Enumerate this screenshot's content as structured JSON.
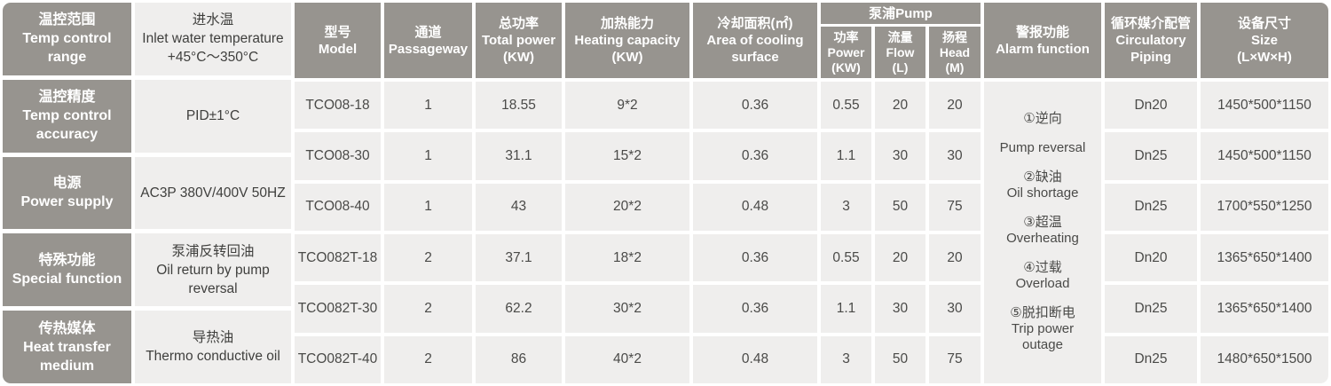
{
  "colors": {
    "header_bg": "#97948F",
    "cell_bg": "#EFEEED",
    "header_text": "#FFFFFF",
    "cell_text": "#4A4A48",
    "background": "#FFFFFF"
  },
  "left_panel": {
    "rows": [
      {
        "label": "温控范围\nTemp control\nrange",
        "value": "进水温\nInlet water temperature\n+45°C～350°C"
      },
      {
        "label": "温控精度\nTemp control\naccuracy",
        "value": "PID±1°C"
      },
      {
        "label": "电源\nPower supply",
        "value": "AC3P 380V/400V 50HZ"
      },
      {
        "label": "特殊功能\nSpecial function",
        "value": "泵浦反转回油\nOil return by pump\nreversal"
      },
      {
        "label": "传热媒体\nHeat transfer\nmedium",
        "value": "导热油\nThermo conductive oil"
      }
    ]
  },
  "table": {
    "headers": {
      "model": "型号\nModel",
      "passageway": "通道\nPassageway",
      "total_power": "总功率\nTotal power\n(KW)",
      "heating_capacity": "加热能力\nHeating capacity\n(KW)",
      "cooling_area": "冷却面积(㎡)\nArea of cooling\nsurface",
      "pump_group": "泵浦Pump",
      "pump_power": "功率\nPower\n(KW)",
      "pump_flow": "流量\nFlow\n(L)",
      "pump_head": "扬程\nHead\n(M)",
      "alarm": "警报功能\nAlarm function",
      "piping": "循环媒介配管\nCirculatory\nPiping",
      "size": "设备尺寸\nSize\n(L×W×H)"
    },
    "alarm_items": [
      "①逆向",
      "Pump reversal",
      "②缺油\nOil shortage",
      "③超温\nOverheating",
      "④过载\nOverload",
      "⑤脱扣断电\nTrip power\noutage"
    ],
    "rows": [
      {
        "cells": [
          "TCO08-18",
          "1",
          "18.55",
          "9*2",
          "0.36",
          "0.55",
          "20",
          "20",
          "Dn20",
          "1450*500*1150"
        ]
      },
      {
        "cells": [
          "TCO08-30",
          "1",
          "31.1",
          "15*2",
          "0.36",
          "1.1",
          "30",
          "30",
          "Dn25",
          "1450*500*1150"
        ]
      },
      {
        "cells": [
          "TCO08-40",
          "1",
          "43",
          "20*2",
          "0.48",
          "3",
          "50",
          "75",
          "Dn25",
          "1700*550*1250"
        ]
      },
      {
        "cells": [
          "TCO082T-18",
          "2",
          "37.1",
          "18*2",
          "0.36",
          "0.55",
          "20",
          "20",
          "Dn20",
          "1365*650*1400"
        ]
      },
      {
        "cells": [
          "TCO082T-30",
          "2",
          "62.2",
          "30*2",
          "0.36",
          "1.1",
          "30",
          "30",
          "Dn25",
          "1365*650*1400"
        ]
      },
      {
        "cells": [
          "TCO082T-40",
          "2",
          "86",
          "40*2",
          "0.48",
          "3",
          "50",
          "75",
          "Dn25",
          "1480*650*1500"
        ]
      }
    ]
  },
  "chart_data": {
    "type": "table",
    "columns": [
      "型号 Model",
      "通道 Passageway",
      "总功率 Total power (KW)",
      "加热能力 Heating capacity (KW)",
      "冷却面积(㎡) Area of cooling surface",
      "泵浦Pump 功率 Power (KW)",
      "泵浦Pump 流量 Flow (L)",
      "泵浦Pump 扬程 Head (M)",
      "循环媒介配管 Circulatory Piping",
      "设备尺寸 Size (L×W×H)"
    ],
    "rows": [
      [
        "TCO08-18",
        "1",
        "18.55",
        "9*2",
        "0.36",
        "0.55",
        "20",
        "20",
        "Dn20",
        "1450*500*1150"
      ],
      [
        "TCO08-30",
        "1",
        "31.1",
        "15*2",
        "0.36",
        "1.1",
        "30",
        "30",
        "Dn25",
        "1450*500*1150"
      ],
      [
        "TCO08-40",
        "1",
        "43",
        "20*2",
        "0.48",
        "3",
        "50",
        "75",
        "Dn25",
        "1700*550*1250"
      ],
      [
        "TCO082T-18",
        "2",
        "37.1",
        "18*2",
        "0.36",
        "0.55",
        "20",
        "20",
        "Dn20",
        "1365*650*1400"
      ],
      [
        "TCO082T-30",
        "2",
        "62.2",
        "30*2",
        "0.36",
        "1.1",
        "30",
        "30",
        "Dn25",
        "1365*650*1400"
      ],
      [
        "TCO082T-40",
        "2",
        "86",
        "40*2",
        "0.48",
        "3",
        "50",
        "75",
        "Dn25",
        "1480*650*1500"
      ]
    ],
    "merged_column": {
      "header": "警报功能 Alarm function",
      "value": "①逆向 Pump reversal ②缺油 Oil shortage ③超温 Overheating ④过载 Overload ⑤脱扣断电 Trip power outage",
      "spans": "all 6 rows"
    },
    "side_table": [
      [
        "温控范围 Temp control range",
        "进水温 Inlet water temperature +45°C～350°C"
      ],
      [
        "温控精度 Temp control accuracy",
        "PID±1°C"
      ],
      [
        "电源 Power supply",
        "AC3P 380V/400V 50HZ"
      ],
      [
        "特殊功能 Special function",
        "泵浦反转回油 Oil return by pump reversal"
      ],
      [
        "传热媒体 Heat transfer medium",
        "导热油 Thermo conductive oil"
      ]
    ]
  }
}
